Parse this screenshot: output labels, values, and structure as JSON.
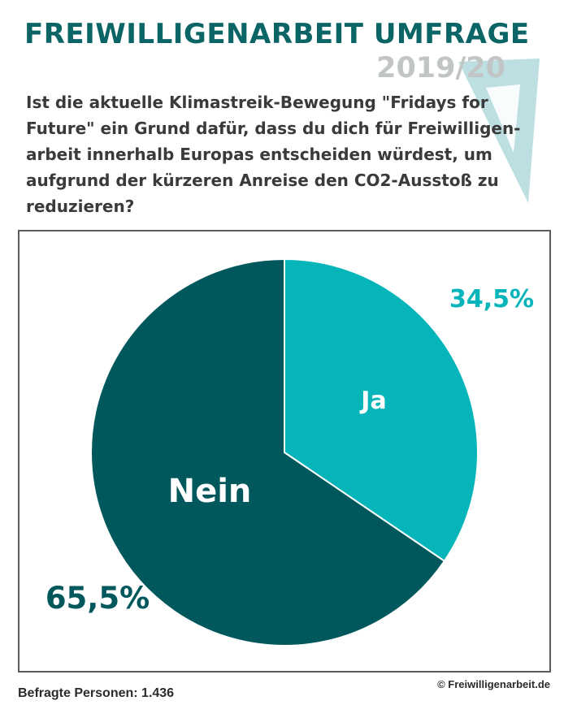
{
  "header": {
    "title": "FREIWILLIGENARBEIT UMFRAGE",
    "year": "2019/20",
    "question": "Ist die aktuelle Klimastreik-Bewegung \"Fridays for Future\" ein Grund dafür, dass du dich für Freiwilligen-arbeit innerhalb Europas entscheiden würdest, um aufgrund der kürzeren Anreise den CO2-Ausstoß zu reduzieren?"
  },
  "colors": {
    "title": "#0b6466",
    "ja": "#05b5b9",
    "nein": "#00585c",
    "year": "#c2c5c5",
    "logo": "#a8d4d8"
  },
  "logo_icon": "triangle-logo-icon",
  "chart_data": {
    "type": "pie",
    "start_angle_deg": 0,
    "direction": "clockwise",
    "slices": [
      {
        "label": "Ja",
        "value": 34.5,
        "value_label": "34,5%",
        "color": "#05b5b9"
      },
      {
        "label": "Nein",
        "value": 65.5,
        "value_label": "65,5%",
        "color": "#00585c"
      }
    ]
  },
  "footer": {
    "respondents": "Befragte Personen: 1.436",
    "copyright": "© Freiwilligenarbeit.de"
  }
}
